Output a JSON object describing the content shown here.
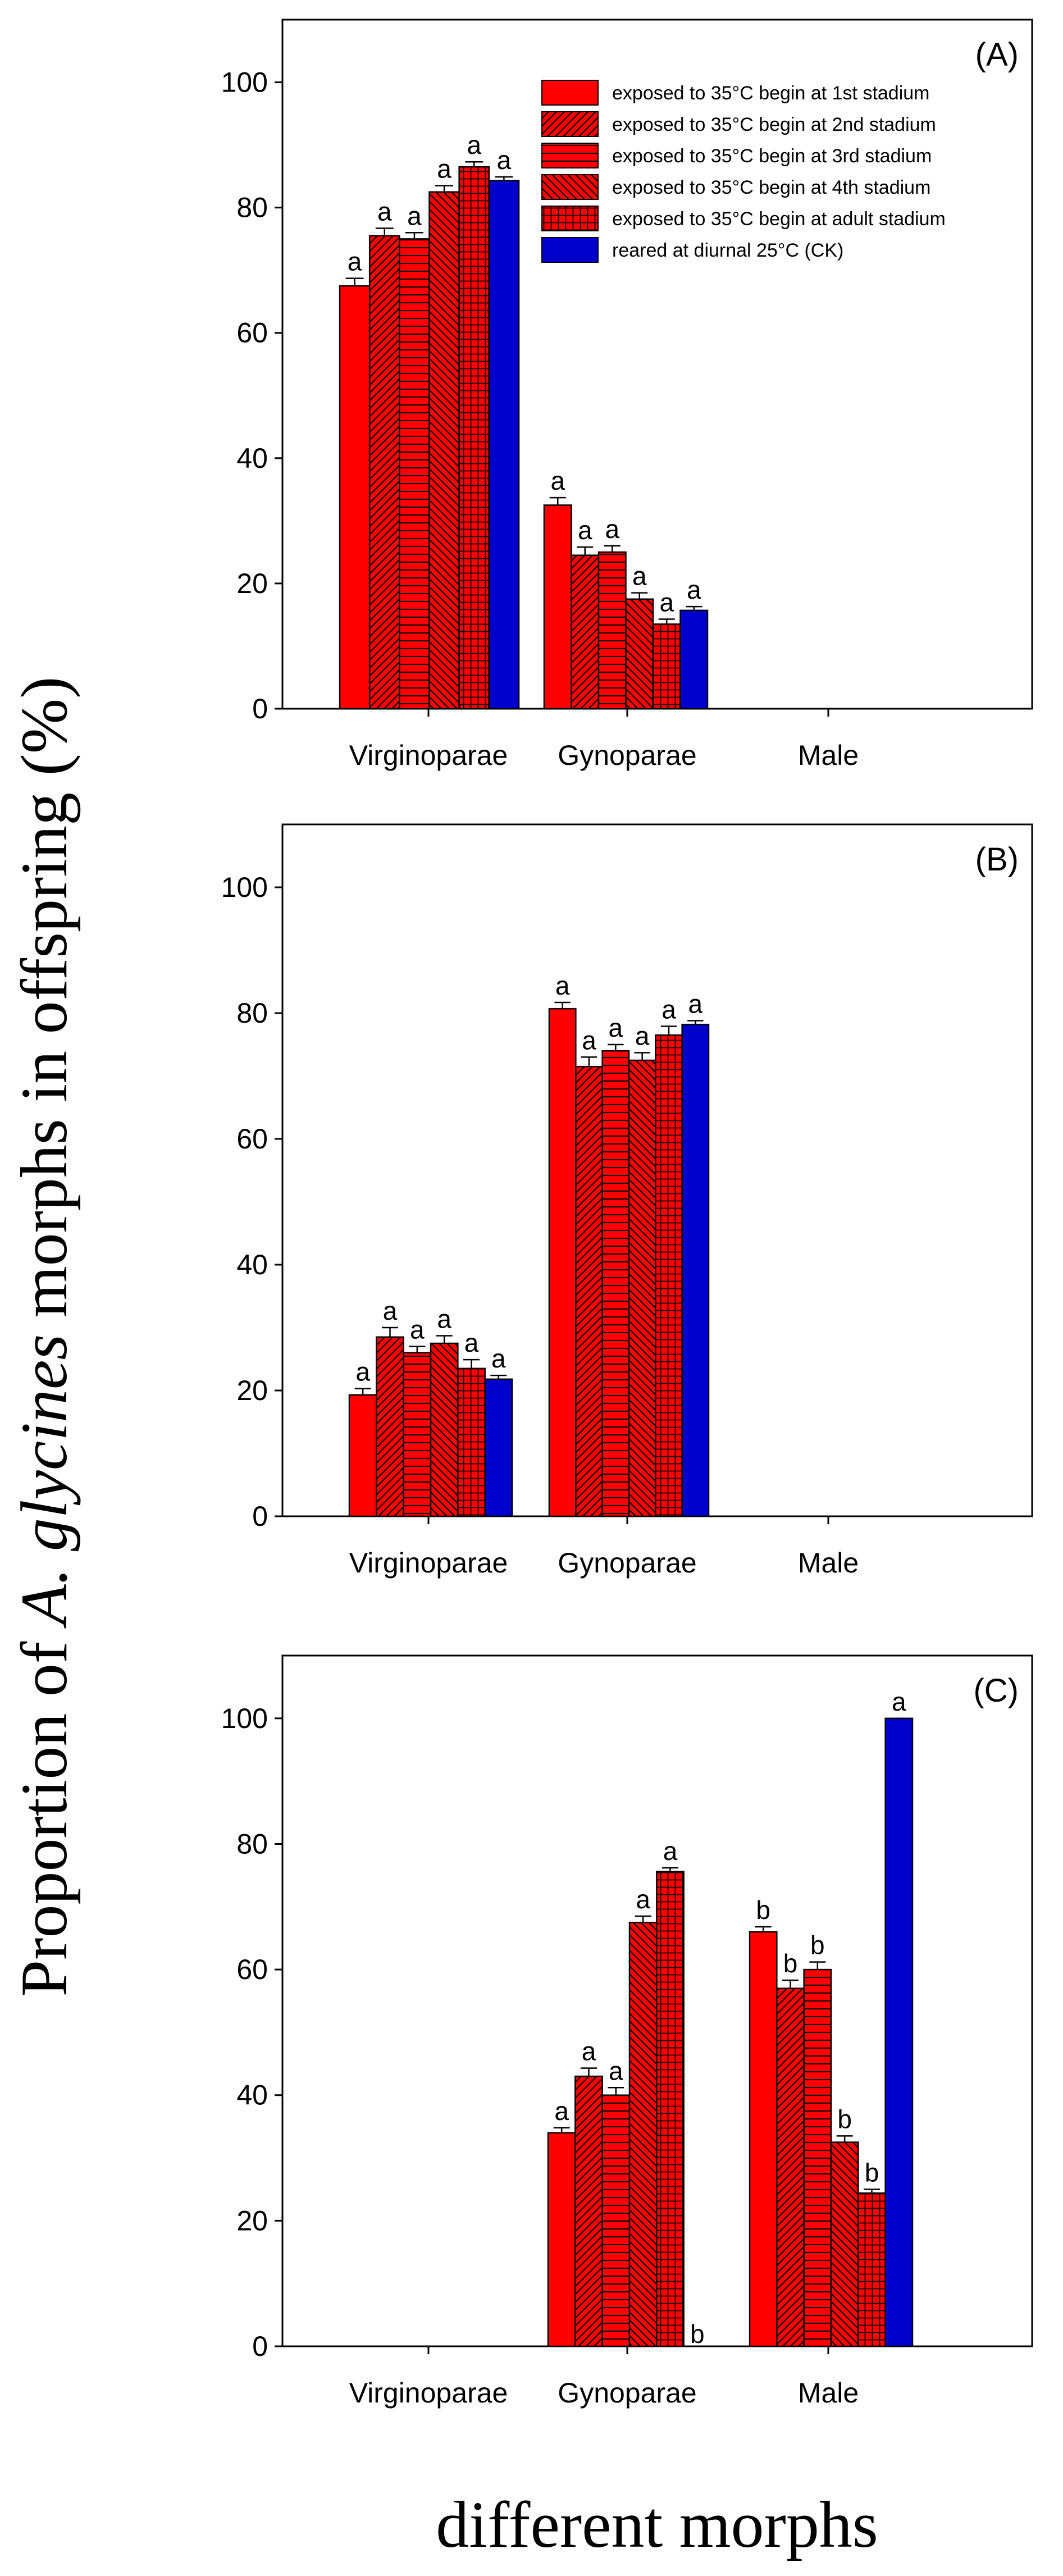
{
  "figure": {
    "ylabel_before": "Proportion of ",
    "ylabel_italic": "A. glycines",
    "ylabel_after": " morphs in offspring (%)",
    "xlabel": "different morphs"
  },
  "colors": {
    "red": "#ff0000",
    "blue": "#0000cc",
    "stroke": "#000000"
  },
  "legend": [
    {
      "label": "exposed to 35°C begin at 1st stadium",
      "pattern": "solid"
    },
    {
      "label": "exposed to 35°C begin at 2nd stadium",
      "pattern": "diag-up"
    },
    {
      "label": "exposed to 35°C begin at 3rd stadium",
      "pattern": "horiz"
    },
    {
      "label": "exposed to 35°C begin at 4th stadium",
      "pattern": "diag-down"
    },
    {
      "label": "exposed to 35°C begin at adult  stadium",
      "pattern": "grid"
    },
    {
      "label": "reared at diurnal 25°C (CK)",
      "pattern": "blue"
    }
  ],
  "chart_data": [
    {
      "type": "bar",
      "panel_label": "(A)",
      "categories": [
        "Virginoparae",
        "Gynoparae",
        "Male"
      ],
      "ylim": [
        0,
        110
      ],
      "yticks": [
        "0",
        "20",
        "40",
        "60",
        "80",
        "100"
      ],
      "series": [
        {
          "name": "exposed to 35°C begin at 1st stadium",
          "values": [
            67.5,
            32.5,
            0
          ],
          "errors": [
            1.2,
            1.2,
            0
          ],
          "letters": [
            "a",
            "a",
            ""
          ]
        },
        {
          "name": "exposed to 35°C begin at 2nd stadium",
          "values": [
            75.5,
            24.5,
            0
          ],
          "errors": [
            1.2,
            1.3,
            0
          ],
          "letters": [
            "a",
            "a",
            ""
          ]
        },
        {
          "name": "exposed to 35°C begin at 3rd stadium",
          "values": [
            75.0,
            25.0,
            0
          ],
          "errors": [
            1.0,
            1.0,
            0
          ],
          "letters": [
            "a",
            "a",
            ""
          ]
        },
        {
          "name": "exposed to 35°C begin at 4th stadium",
          "values": [
            82.5,
            17.5,
            0
          ],
          "errors": [
            1.0,
            1.0,
            0
          ],
          "letters": [
            "a",
            "a",
            ""
          ]
        },
        {
          "name": "exposed to 35°C begin at adult  stadium",
          "values": [
            86.5,
            13.5,
            0
          ],
          "errors": [
            0.8,
            0.8,
            0
          ],
          "letters": [
            "a",
            "a",
            ""
          ]
        },
        {
          "name": "reared at diurnal 25°C (CK)",
          "values": [
            84.3,
            15.7,
            0
          ],
          "errors": [
            0.6,
            0.6,
            0
          ],
          "letters": [
            "a",
            "a",
            ""
          ]
        }
      ]
    },
    {
      "type": "bar",
      "panel_label": "(B)",
      "categories": [
        "Virginoparae",
        "Gynoparae",
        "Male"
      ],
      "ylim": [
        0,
        110
      ],
      "yticks": [
        "0",
        "20",
        "40",
        "60",
        "80",
        "100"
      ],
      "series": [
        {
          "name": "exposed to 35°C begin at 1st stadium",
          "values": [
            19.3,
            80.7,
            0
          ],
          "errors": [
            1.0,
            1.0,
            0
          ],
          "letters": [
            "a",
            "a",
            ""
          ]
        },
        {
          "name": "exposed to 35°C begin at 2nd stadium",
          "values": [
            28.5,
            71.5,
            0
          ],
          "errors": [
            1.5,
            1.5,
            0
          ],
          "letters": [
            "a",
            "a",
            ""
          ]
        },
        {
          "name": "exposed to 35°C begin at 3rd stadium",
          "values": [
            26.0,
            74.0,
            0
          ],
          "errors": [
            1.0,
            1.0,
            0
          ],
          "letters": [
            "a",
            "a",
            ""
          ]
        },
        {
          "name": "exposed to 35°C begin at 4th stadium",
          "values": [
            27.5,
            72.5,
            0
          ],
          "errors": [
            1.2,
            1.2,
            0
          ],
          "letters": [
            "a",
            "a",
            ""
          ]
        },
        {
          "name": "exposed to 35°C begin at adult  stadium",
          "values": [
            23.5,
            76.5,
            0
          ],
          "errors": [
            1.4,
            1.4,
            0
          ],
          "letters": [
            "a",
            "a",
            ""
          ]
        },
        {
          "name": "reared at diurnal 25°C (CK)",
          "values": [
            21.8,
            78.2,
            0
          ],
          "errors": [
            0.6,
            0.6,
            0
          ],
          "letters": [
            "a",
            "a",
            ""
          ]
        }
      ]
    },
    {
      "type": "bar",
      "panel_label": "(C)",
      "categories": [
        "Virginoparae",
        "Gynoparae",
        "Male"
      ],
      "ylim": [
        0,
        110
      ],
      "yticks": [
        "0",
        "20",
        "40",
        "60",
        "80",
        "100"
      ],
      "series": [
        {
          "name": "exposed to 35°C begin at 1st stadium",
          "values": [
            0,
            34.0,
            66.0
          ],
          "errors": [
            0,
            0.8,
            0.8
          ],
          "letters": [
            "",
            "a",
            "b"
          ]
        },
        {
          "name": "exposed to 35°C begin at 2nd stadium",
          "values": [
            0,
            43.0,
            57.0
          ],
          "errors": [
            0,
            1.3,
            1.3
          ],
          "letters": [
            "",
            "a",
            "b"
          ]
        },
        {
          "name": "exposed to 35°C begin at 3rd stadium",
          "values": [
            0,
            40.0,
            60.0
          ],
          "errors": [
            0,
            1.2,
            1.2
          ],
          "letters": [
            "",
            "a",
            "b"
          ]
        },
        {
          "name": "exposed to 35°C begin at 4th stadium",
          "values": [
            0,
            67.5,
            32.5
          ],
          "errors": [
            0,
            1.0,
            1.0
          ],
          "letters": [
            "",
            "a",
            "b"
          ]
        },
        {
          "name": "exposed to 35°C begin at adult  stadium",
          "values": [
            0,
            75.6,
            24.4
          ],
          "errors": [
            0,
            0.6,
            0.6
          ],
          "letters": [
            "",
            "a",
            "b"
          ]
        },
        {
          "name": "reared at diurnal 25°C (CK)",
          "values": [
            0,
            0,
            100
          ],
          "errors": [
            0,
            0,
            0
          ],
          "letters": [
            "",
            "b",
            "a"
          ]
        }
      ]
    }
  ]
}
